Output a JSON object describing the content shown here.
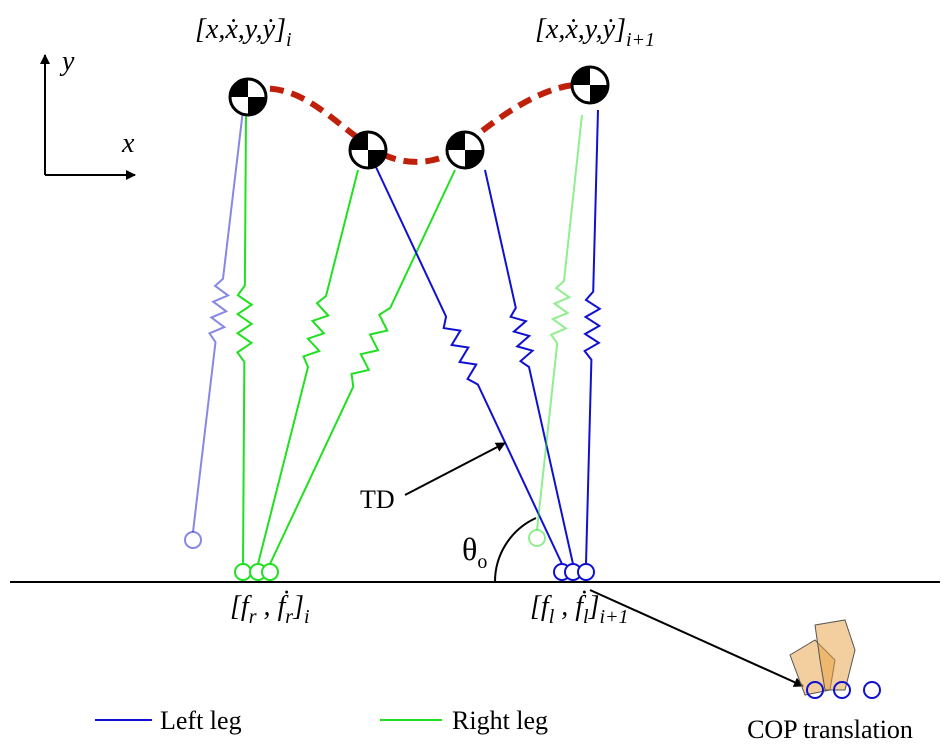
{
  "state_start": {
    "parts": [
      {
        "text": "[x,ẋ,y,ẏ]"
      },
      {
        "text": "i",
        "sub": true
      }
    ]
  },
  "state_end": {
    "parts": [
      {
        "text": "[x,ẋ,y,ẏ]"
      },
      {
        "text": "i+1",
        "sub": true
      }
    ]
  },
  "axes": {
    "x": "x",
    "y": "y"
  },
  "touchdown": "TD",
  "angle": {
    "parts": [
      {
        "text": "θ"
      },
      {
        "text": "o",
        "sub": true
      }
    ]
  },
  "foot_right": {
    "parts": [
      {
        "text": "[f"
      },
      {
        "text": "r",
        "sub": true
      },
      {
        "text": " , ḟ"
      },
      {
        "text": "r",
        "sub": true
      },
      {
        "text": "]"
      },
      {
        "text": "i",
        "sub": true
      }
    ]
  },
  "foot_left": {
    "parts": [
      {
        "text": "[f"
      },
      {
        "text": "l",
        "sub": true
      },
      {
        "text": " , ḟ"
      },
      {
        "text": "l",
        "sub": true
      },
      {
        "text": "]"
      },
      {
        "text": "i+1",
        "sub": true
      }
    ]
  },
  "legend": {
    "left": "Left leg",
    "right": "Right leg",
    "cop": "COP translation"
  }
}
